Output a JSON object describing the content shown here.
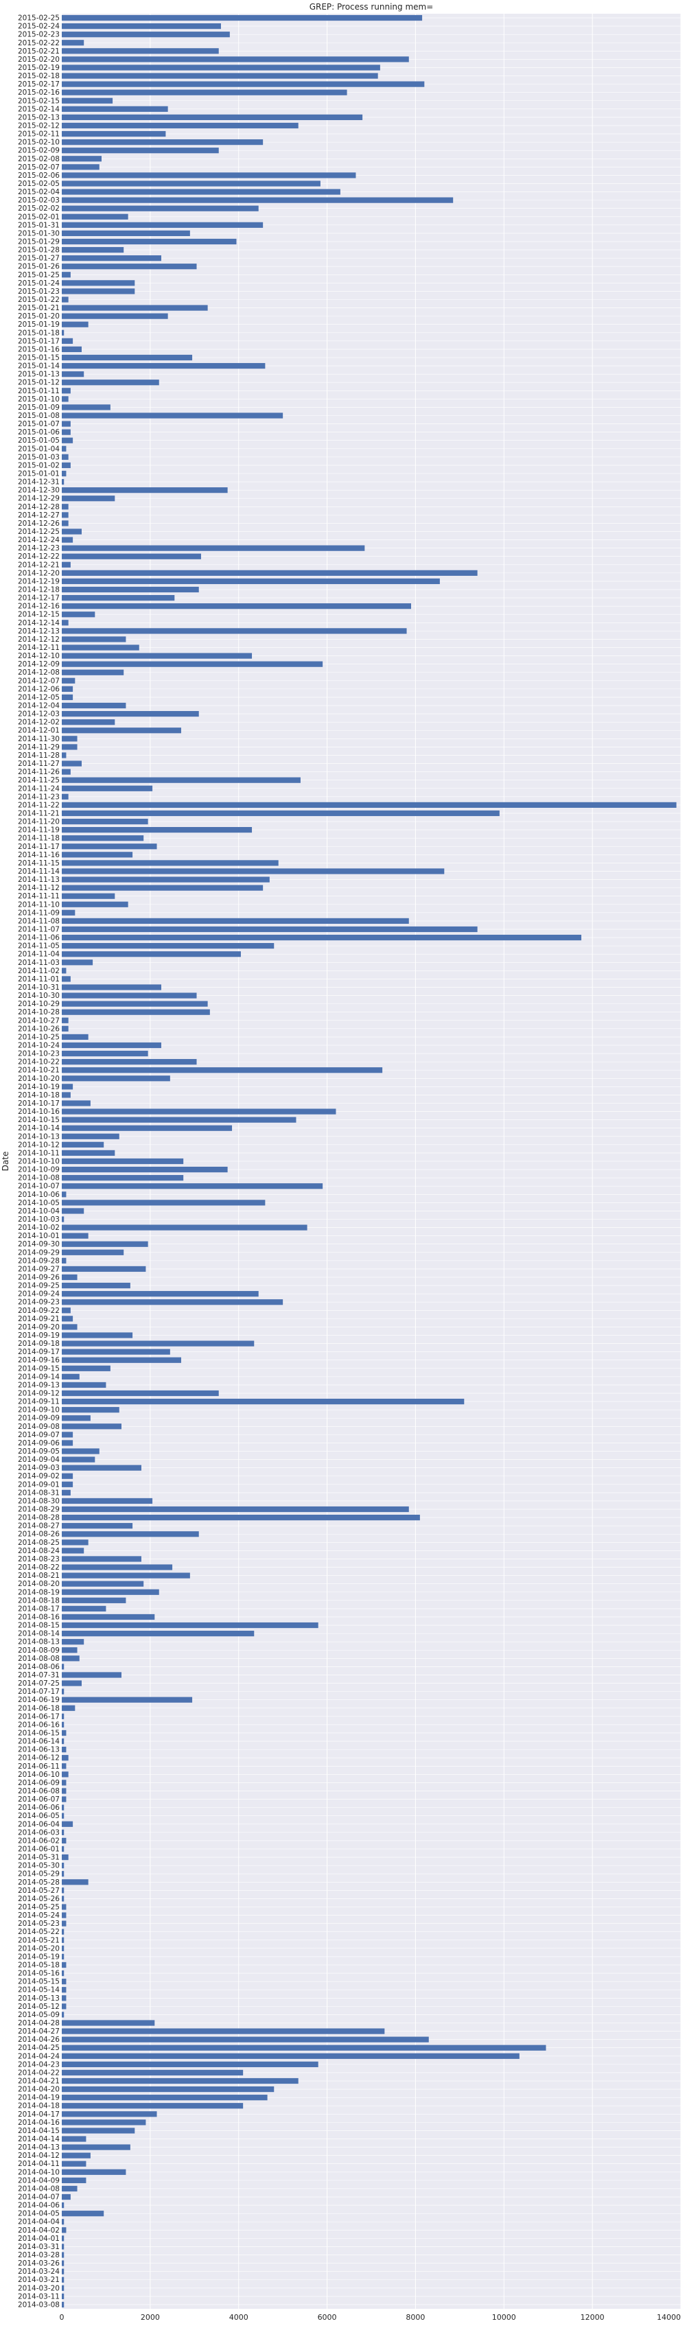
{
  "chart_data": {
    "type": "bar",
    "orientation": "horizontal",
    "title": "GREP: Process running mem=",
    "ylabel": "Date",
    "xlabel": "",
    "xlim": [
      0,
      14000
    ],
    "x_ticks": [
      0,
      2000,
      4000,
      6000,
      8000,
      10000,
      12000,
      14000
    ],
    "grid": true,
    "bar_color": "#4c72b0",
    "background_color": "#eaeaf2",
    "categories": [
      "2015-02-25",
      "2015-02-24",
      "2015-02-23",
      "2015-02-22",
      "2015-02-21",
      "2015-02-20",
      "2015-02-19",
      "2015-02-18",
      "2015-02-17",
      "2015-02-16",
      "2015-02-15",
      "2015-02-14",
      "2015-02-13",
      "2015-02-12",
      "2015-02-11",
      "2015-02-10",
      "2015-02-09",
      "2015-02-08",
      "2015-02-07",
      "2015-02-06",
      "2015-02-05",
      "2015-02-04",
      "2015-02-03",
      "2015-02-02",
      "2015-02-01",
      "2015-01-31",
      "2015-01-30",
      "2015-01-29",
      "2015-01-28",
      "2015-01-27",
      "2015-01-26",
      "2015-01-25",
      "2015-01-24",
      "2015-01-23",
      "2015-01-22",
      "2015-01-21",
      "2015-01-20",
      "2015-01-19",
      "2015-01-18",
      "2015-01-17",
      "2015-01-16",
      "2015-01-15",
      "2015-01-14",
      "2015-01-13",
      "2015-01-12",
      "2015-01-11",
      "2015-01-10",
      "2015-01-09",
      "2015-01-08",
      "2015-01-07",
      "2015-01-06",
      "2015-01-05",
      "2015-01-04",
      "2015-01-03",
      "2015-01-02",
      "2015-01-01",
      "2014-12-31",
      "2014-12-30",
      "2014-12-29",
      "2014-12-28",
      "2014-12-27",
      "2014-12-26",
      "2014-12-25",
      "2014-12-24",
      "2014-12-23",
      "2014-12-22",
      "2014-12-21",
      "2014-12-20",
      "2014-12-19",
      "2014-12-18",
      "2014-12-17",
      "2014-12-16",
      "2014-12-15",
      "2014-12-14",
      "2014-12-13",
      "2014-12-12",
      "2014-12-11",
      "2014-12-10",
      "2014-12-09",
      "2014-12-08",
      "2014-12-07",
      "2014-12-06",
      "2014-12-05",
      "2014-12-04",
      "2014-12-03",
      "2014-12-02",
      "2014-12-01",
      "2014-11-30",
      "2014-11-29",
      "2014-11-28",
      "2014-11-27",
      "2014-11-26",
      "2014-11-25",
      "2014-11-24",
      "2014-11-23",
      "2014-11-22",
      "2014-11-21",
      "2014-11-20",
      "2014-11-19",
      "2014-11-18",
      "2014-11-17",
      "2014-11-16",
      "2014-11-15",
      "2014-11-14",
      "2014-11-13",
      "2014-11-12",
      "2014-11-11",
      "2014-11-10",
      "2014-11-09",
      "2014-11-08",
      "2014-11-07",
      "2014-11-06",
      "2014-11-05",
      "2014-11-04",
      "2014-11-03",
      "2014-11-02",
      "2014-11-01",
      "2014-10-31",
      "2014-10-30",
      "2014-10-29",
      "2014-10-28",
      "2014-10-27",
      "2014-10-26",
      "2014-10-25",
      "2014-10-24",
      "2014-10-23",
      "2014-10-22",
      "2014-10-21",
      "2014-10-20",
      "2014-10-19",
      "2014-10-18",
      "2014-10-17",
      "2014-10-16",
      "2014-10-15",
      "2014-10-14",
      "2014-10-13",
      "2014-10-12",
      "2014-10-11",
      "2014-10-10",
      "2014-10-09",
      "2014-10-08",
      "2014-10-07",
      "2014-10-06",
      "2014-10-05",
      "2014-10-04",
      "2014-10-03",
      "2014-10-02",
      "2014-10-01",
      "2014-09-30",
      "2014-09-29",
      "2014-09-28",
      "2014-09-27",
      "2014-09-26",
      "2014-09-25",
      "2014-09-24",
      "2014-09-23",
      "2014-09-22",
      "2014-09-21",
      "2014-09-20",
      "2014-09-19",
      "2014-09-18",
      "2014-09-17",
      "2014-09-16",
      "2014-09-15",
      "2014-09-14",
      "2014-09-13",
      "2014-09-12",
      "2014-09-11",
      "2014-09-10",
      "2014-09-09",
      "2014-09-08",
      "2014-09-07",
      "2014-09-06",
      "2014-09-05",
      "2014-09-04",
      "2014-09-03",
      "2014-09-02",
      "2014-09-01",
      "2014-08-31",
      "2014-08-30",
      "2014-08-29",
      "2014-08-28",
      "2014-08-27",
      "2014-08-26",
      "2014-08-25",
      "2014-08-24",
      "2014-08-23",
      "2014-08-22",
      "2014-08-21",
      "2014-08-20",
      "2014-08-19",
      "2014-08-18",
      "2014-08-17",
      "2014-08-16",
      "2014-08-15",
      "2014-08-14",
      "2014-08-13",
      "2014-08-09",
      "2014-08-08",
      "2014-08-06",
      "2014-07-31",
      "2014-07-25",
      "2014-07-17",
      "2014-06-19",
      "2014-06-18",
      "2014-06-17",
      "2014-06-16",
      "2014-06-15",
      "2014-06-14",
      "2014-06-13",
      "2014-06-12",
      "2014-06-11",
      "2014-06-10",
      "2014-06-09",
      "2014-06-08",
      "2014-06-07",
      "2014-06-06",
      "2014-06-05",
      "2014-06-04",
      "2014-06-03",
      "2014-06-02",
      "2014-06-01",
      "2014-05-31",
      "2014-05-30",
      "2014-05-29",
      "2014-05-28",
      "2014-05-27",
      "2014-05-26",
      "2014-05-25",
      "2014-05-24",
      "2014-05-23",
      "2014-05-22",
      "2014-05-21",
      "2014-05-20",
      "2014-05-19",
      "2014-05-18",
      "2014-05-16",
      "2014-05-15",
      "2014-05-14",
      "2014-05-13",
      "2014-05-12",
      "2014-05-09",
      "2014-04-28",
      "2014-04-27",
      "2014-04-26",
      "2014-04-25",
      "2014-04-24",
      "2014-04-23",
      "2014-04-22",
      "2014-04-21",
      "2014-04-20",
      "2014-04-19",
      "2014-04-18",
      "2014-04-17",
      "2014-04-16",
      "2014-04-15",
      "2014-04-14",
      "2014-04-13",
      "2014-04-12",
      "2014-04-11",
      "2014-04-10",
      "2014-04-09",
      "2014-04-08",
      "2014-04-07",
      "2014-04-06",
      "2014-04-05",
      "2014-04-04",
      "2014-04-02",
      "2014-04-01",
      "2014-03-31",
      "2014-03-28",
      "2014-03-26",
      "2014-03-24",
      "2014-03-21",
      "2014-03-20",
      "2014-03-11",
      "2014-03-08"
    ],
    "values": [
      8150,
      3600,
      3800,
      500,
      3550,
      7850,
      7200,
      7150,
      8200,
      6450,
      1150,
      2400,
      6800,
      5350,
      2350,
      4550,
      3550,
      900,
      850,
      6650,
      5850,
      6300,
      8850,
      4450,
      1500,
      4550,
      2900,
      3950,
      1400,
      2250,
      3050,
      200,
      1650,
      1650,
      150,
      3300,
      2400,
      600,
      50,
      250,
      450,
      2950,
      4600,
      500,
      2200,
      200,
      150,
      1100,
      5000,
      200,
      200,
      250,
      100,
      150,
      200,
      100,
      50,
      3750,
      1200,
      150,
      150,
      150,
      450,
      250,
      6850,
      3150,
      200,
      9400,
      8550,
      3100,
      2550,
      7900,
      750,
      150,
      7800,
      1450,
      1750,
      4300,
      5900,
      1400,
      300,
      250,
      250,
      1450,
      3100,
      1200,
      2700,
      350,
      350,
      100,
      450,
      200,
      5400,
      2050,
      150,
      13900,
      9900,
      1950,
      4300,
      1850,
      2150,
      1600,
      4900,
      8650,
      4700,
      4550,
      1200,
      1500,
      300,
      7850,
      9400,
      11750,
      4800,
      4050,
      700,
      100,
      200,
      2250,
      3050,
      3300,
      3350,
      150,
      150,
      600,
      2250,
      1950,
      3050,
      7250,
      2450,
      250,
      200,
      650,
      6200,
      5300,
      3850,
      1300,
      950,
      1200,
      2750,
      3750,
      2750,
      5900,
      100,
      4600,
      500,
      50,
      5550,
      600,
      1950,
      1400,
      100,
      1900,
      350,
      1550,
      4450,
      5000,
      200,
      250,
      350,
      1600,
      4350,
      2450,
      2700,
      1100,
      400,
      1000,
      3550,
      9100,
      1300,
      650,
      1350,
      250,
      250,
      850,
      750,
      1800,
      250,
      250,
      200,
      2050,
      7850,
      8100,
      1600,
      3100,
      600,
      500,
      1800,
      2500,
      2900,
      1850,
      2200,
      1450,
      1000,
      2100,
      5800,
      4350,
      500,
      350,
      400,
      50,
      1350,
      450,
      50,
      2950,
      300,
      50,
      50,
      100,
      50,
      100,
      150,
      100,
      150,
      100,
      100,
      100,
      50,
      50,
      250,
      50,
      100,
      50,
      150,
      50,
      50,
      600,
      50,
      50,
      100,
      100,
      100,
      50,
      50,
      50,
      50,
      100,
      50,
      100,
      100,
      100,
      100,
      50,
      2100,
      7300,
      8300,
      10950,
      10350,
      5800,
      4100,
      5350,
      4800,
      4650,
      4100,
      2150,
      1900,
      1650,
      550,
      1550,
      650,
      550,
      1450,
      550,
      350,
      200,
      50,
      950,
      50,
      100,
      50,
      50,
      50,
      50,
      50,
      50,
      50,
      50,
      50
    ]
  }
}
